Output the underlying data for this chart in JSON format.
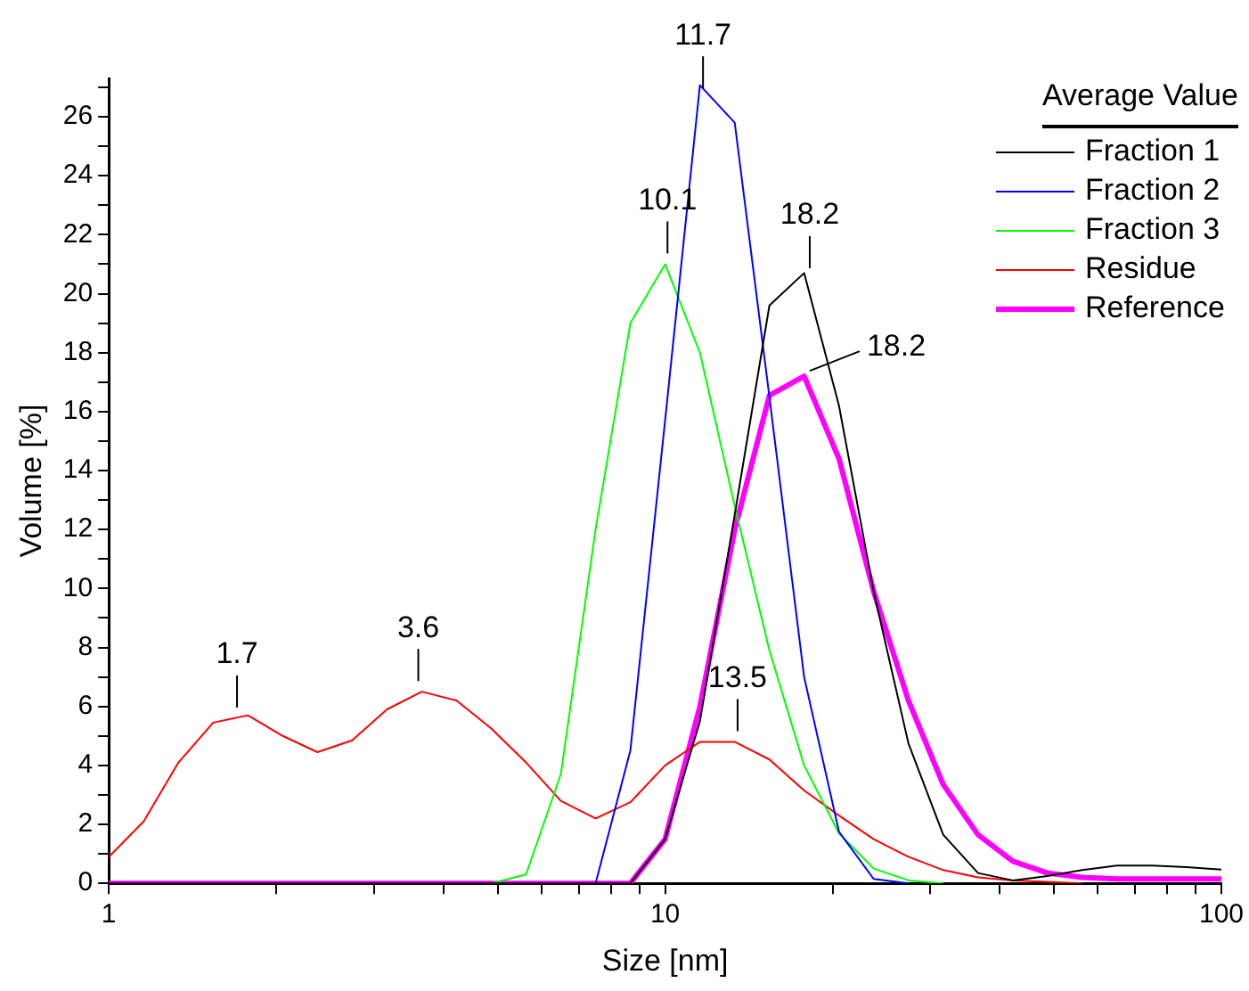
{
  "chart_data": {
    "type": "line",
    "xlabel": "Size [nm]",
    "ylabel": "Volume [%]",
    "legend_title": "Average Value",
    "legend": "top right",
    "log": "x",
    "grid": false,
    "marker": "none",
    "line_style": "solid",
    "x": [
      1,
      1.155,
      1.334,
      1.54,
      1.778,
      2.054,
      2.371,
      2.738,
      3.162,
      3.652,
      4.217,
      4.87,
      5.623,
      6.494,
      7.499,
      8.66,
      10,
      11.55,
      13.34,
      15.4,
      17.78,
      20.54,
      23.71,
      27.38,
      31.62,
      36.52,
      42.17,
      48.7,
      56.23,
      64.94,
      74.99,
      86.6,
      100
    ],
    "xlim": [
      1,
      100
    ],
    "xticks": [
      1,
      {
        "value": 2,
        "label": null
      },
      {
        "value": 3,
        "label": null
      },
      {
        "value": 4,
        "label": null
      },
      {
        "value": 5,
        "label": null
      },
      {
        "value": 6,
        "label": null
      },
      {
        "value": 7,
        "label": null
      },
      {
        "value": 8,
        "label": null
      },
      {
        "value": 9,
        "label": null
      },
      10,
      {
        "value": 20,
        "label": null
      },
      {
        "value": 30,
        "label": null
      },
      {
        "value": 40,
        "label": null
      },
      {
        "value": 50,
        "label": null
      },
      {
        "value": 60,
        "label": null
      },
      {
        "value": 70,
        "label": null
      },
      {
        "value": 80,
        "label": null
      },
      {
        "value": 90,
        "label": null
      },
      100
    ],
    "ylim": [
      0,
      27.3
    ],
    "yticks": [
      0,
      {
        "value": 1,
        "label": null
      },
      2,
      {
        "value": 3,
        "label": null
      },
      4,
      {
        "value": 5,
        "label": null
      },
      6,
      {
        "value": 7,
        "label": null
      },
      8,
      {
        "value": 9,
        "label": null
      },
      10,
      {
        "value": 11,
        "label": null
      },
      12,
      {
        "value": 13,
        "label": null
      },
      14,
      {
        "value": 15,
        "label": null
      },
      16,
      {
        "value": 17,
        "label": null
      },
      18,
      {
        "value": 19,
        "label": null
      },
      20,
      {
        "value": 21,
        "label": null
      },
      22,
      {
        "value": 23,
        "label": null
      },
      24,
      {
        "value": 25,
        "label": null
      },
      26,
      {
        "value": 27,
        "label": null
      }
    ],
    "series": [
      {
        "name": "Fraction 1",
        "color": "#000000",
        "values": [
          0,
          0,
          0,
          0,
          0,
          0,
          0,
          0,
          0,
          0,
          0,
          0,
          0,
          0,
          0,
          0,
          1.5,
          5.5,
          12.5,
          19.6,
          20.7,
          16.2,
          9.9,
          4.75,
          1.65,
          0.35,
          0.1,
          0.25,
          0.45,
          0.6,
          0.6,
          0.55,
          0.47
        ]
      },
      {
        "name": "Fraction 2",
        "color": "#0000ff",
        "values": [
          null,
          null,
          null,
          null,
          null,
          null,
          null,
          null,
          null,
          null,
          null,
          null,
          null,
          null,
          0,
          4.5,
          15.7,
          27.07,
          25.8,
          16.5,
          7.0,
          1.75,
          0.15,
          0,
          null,
          null,
          null,
          null,
          null,
          null,
          null,
          null,
          null
        ]
      },
      {
        "name": "Fraction 3",
        "color": "#00ff00",
        "values": [
          null,
          null,
          null,
          null,
          null,
          null,
          null,
          null,
          null,
          null,
          null,
          0,
          0.3,
          3.7,
          12,
          19,
          21,
          18,
          12.8,
          7.9,
          4,
          1.7,
          0.5,
          0.1,
          0,
          null,
          null,
          null,
          null,
          null,
          null,
          null,
          null
        ]
      },
      {
        "name": "Residue",
        "color": "#ff0000",
        "values": [
          0.9,
          2.1,
          4.1,
          5.45,
          5.7,
          5,
          4.45,
          4.85,
          5.9,
          6.5,
          6.2,
          5.25,
          4.1,
          2.8,
          2.2,
          2.75,
          4,
          4.8,
          4.8,
          4.2,
          3.15,
          2.3,
          1.5,
          0.9,
          0.45,
          0.2,
          0.1,
          0.05,
          0,
          null,
          null,
          null,
          null
        ]
      },
      {
        "name": "Reference",
        "color": "#ff00ff",
        "values": [
          0,
          0,
          0,
          0,
          0,
          0,
          0,
          0,
          0,
          0,
          0,
          0,
          0,
          0,
          0,
          0,
          1.5,
          6,
          12,
          16.55,
          17.2,
          14.4,
          9.9,
          6.2,
          3.35,
          1.65,
          0.75,
          0.35,
          0.2,
          0.15,
          0.15,
          0.15,
          0.15
        ]
      }
    ],
    "annotations": [
      {
        "text": "1.7",
        "x": 1.7,
        "y": 5.6
      },
      {
        "text": "3.6",
        "x": 3.6,
        "y": 6.5
      },
      {
        "text": "10.1",
        "x": 10.1,
        "y": 21
      },
      {
        "text": "11.7",
        "x": 11.7,
        "y": 26.6
      },
      {
        "text": "18.2",
        "x": 18.2,
        "y": 20.5
      },
      {
        "text": "18.2",
        "x": 18.2,
        "y": 17.2
      },
      {
        "text": "13.5",
        "x": 13.5,
        "y": 4.8
      }
    ]
  }
}
